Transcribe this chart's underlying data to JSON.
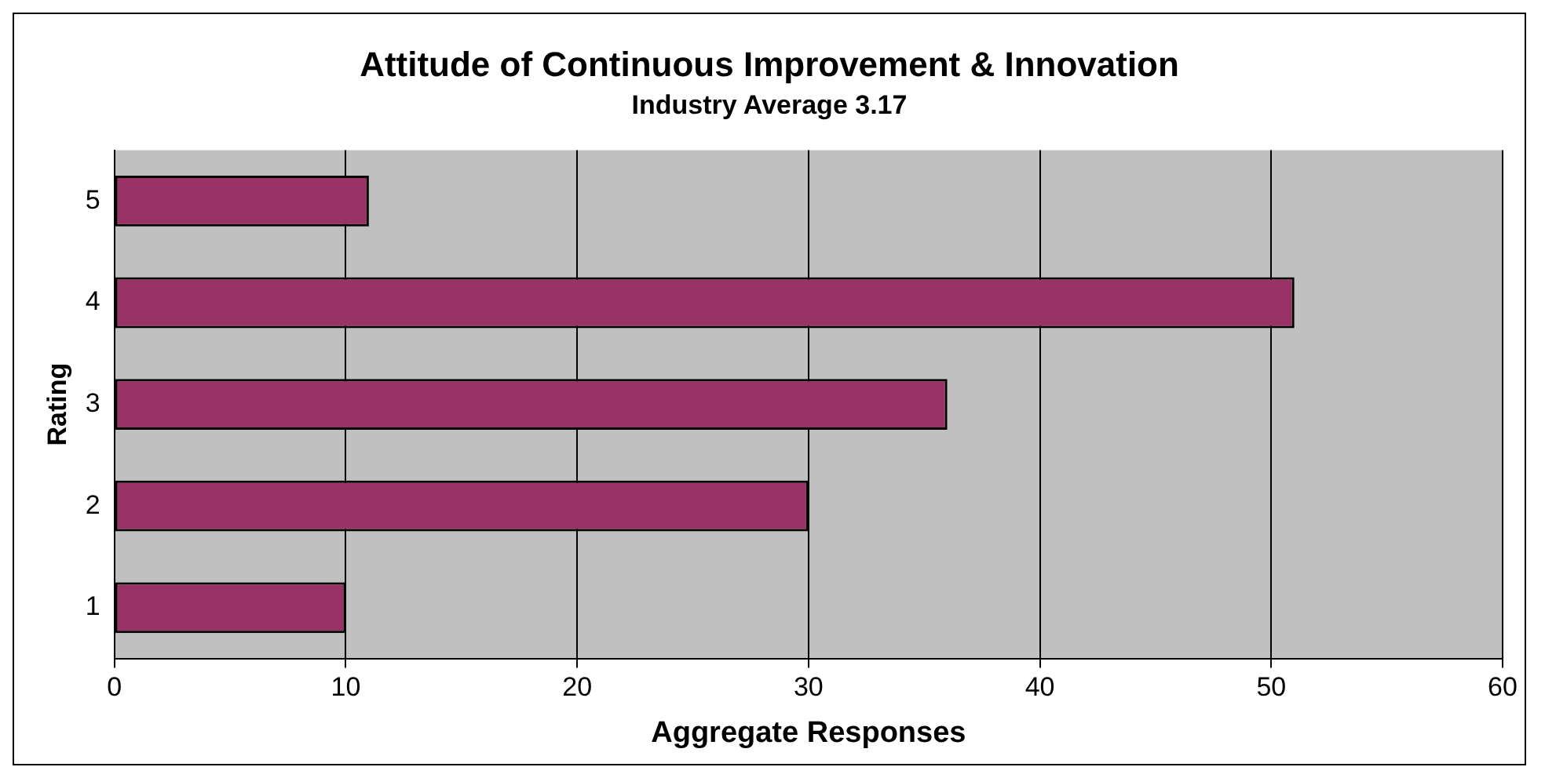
{
  "chart_data": {
    "type": "bar",
    "orientation": "horizontal",
    "title": "Attitude of Continuous Improvement & Innovation",
    "subtitle": "Industry Average 3.17",
    "xlabel": "Aggregate Responses",
    "ylabel": "Rating",
    "categories": [
      "5",
      "4",
      "3",
      "2",
      "1"
    ],
    "values": [
      11,
      51,
      36,
      30,
      10
    ],
    "color": "#993366",
    "xlim": [
      0,
      60
    ],
    "xticks": [
      0,
      10,
      20,
      30,
      40,
      50,
      60
    ],
    "grid": "x",
    "legend": false
  }
}
